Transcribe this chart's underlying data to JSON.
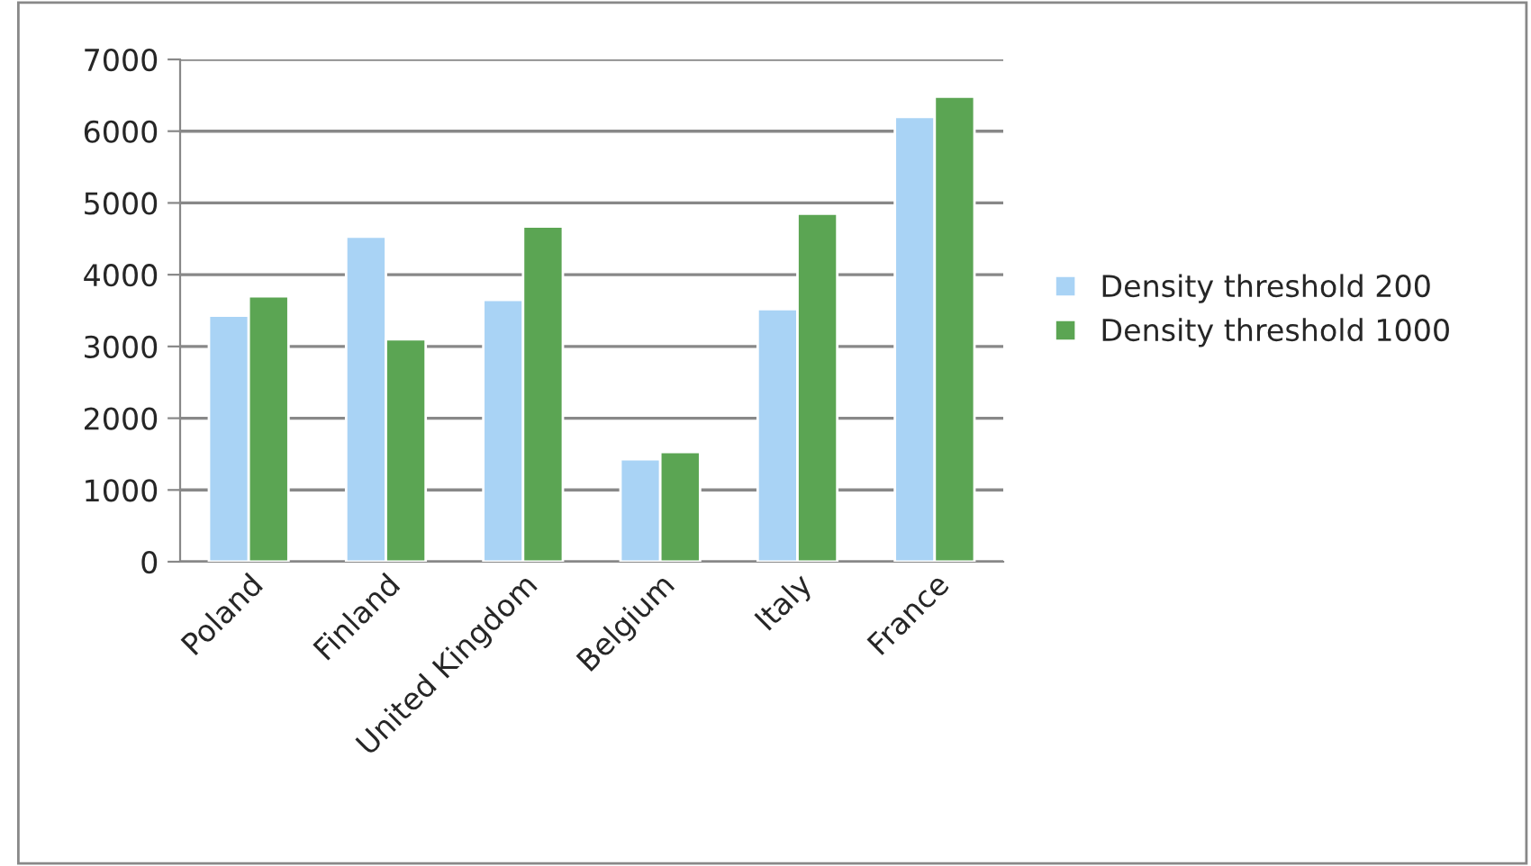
{
  "chart_data": {
    "type": "bar",
    "categories": [
      "Poland",
      "Finland",
      "United Kingdom",
      "Belgium",
      "Italy",
      "France"
    ],
    "series": [
      {
        "name": "Density threshold 200",
        "color": "#a9d3f5",
        "values": [
          3430,
          4530,
          3650,
          1430,
          3520,
          6200
        ]
      },
      {
        "name": "Density threshold 1000",
        "color": "#5ba553",
        "values": [
          3700,
          3100,
          4670,
          1530,
          4850,
          6480
        ]
      }
    ],
    "ylim": [
      0,
      7000
    ],
    "yticks": [
      0,
      1000,
      2000,
      3000,
      4000,
      5000,
      6000,
      7000
    ],
    "grid": "y",
    "legend": "right"
  }
}
